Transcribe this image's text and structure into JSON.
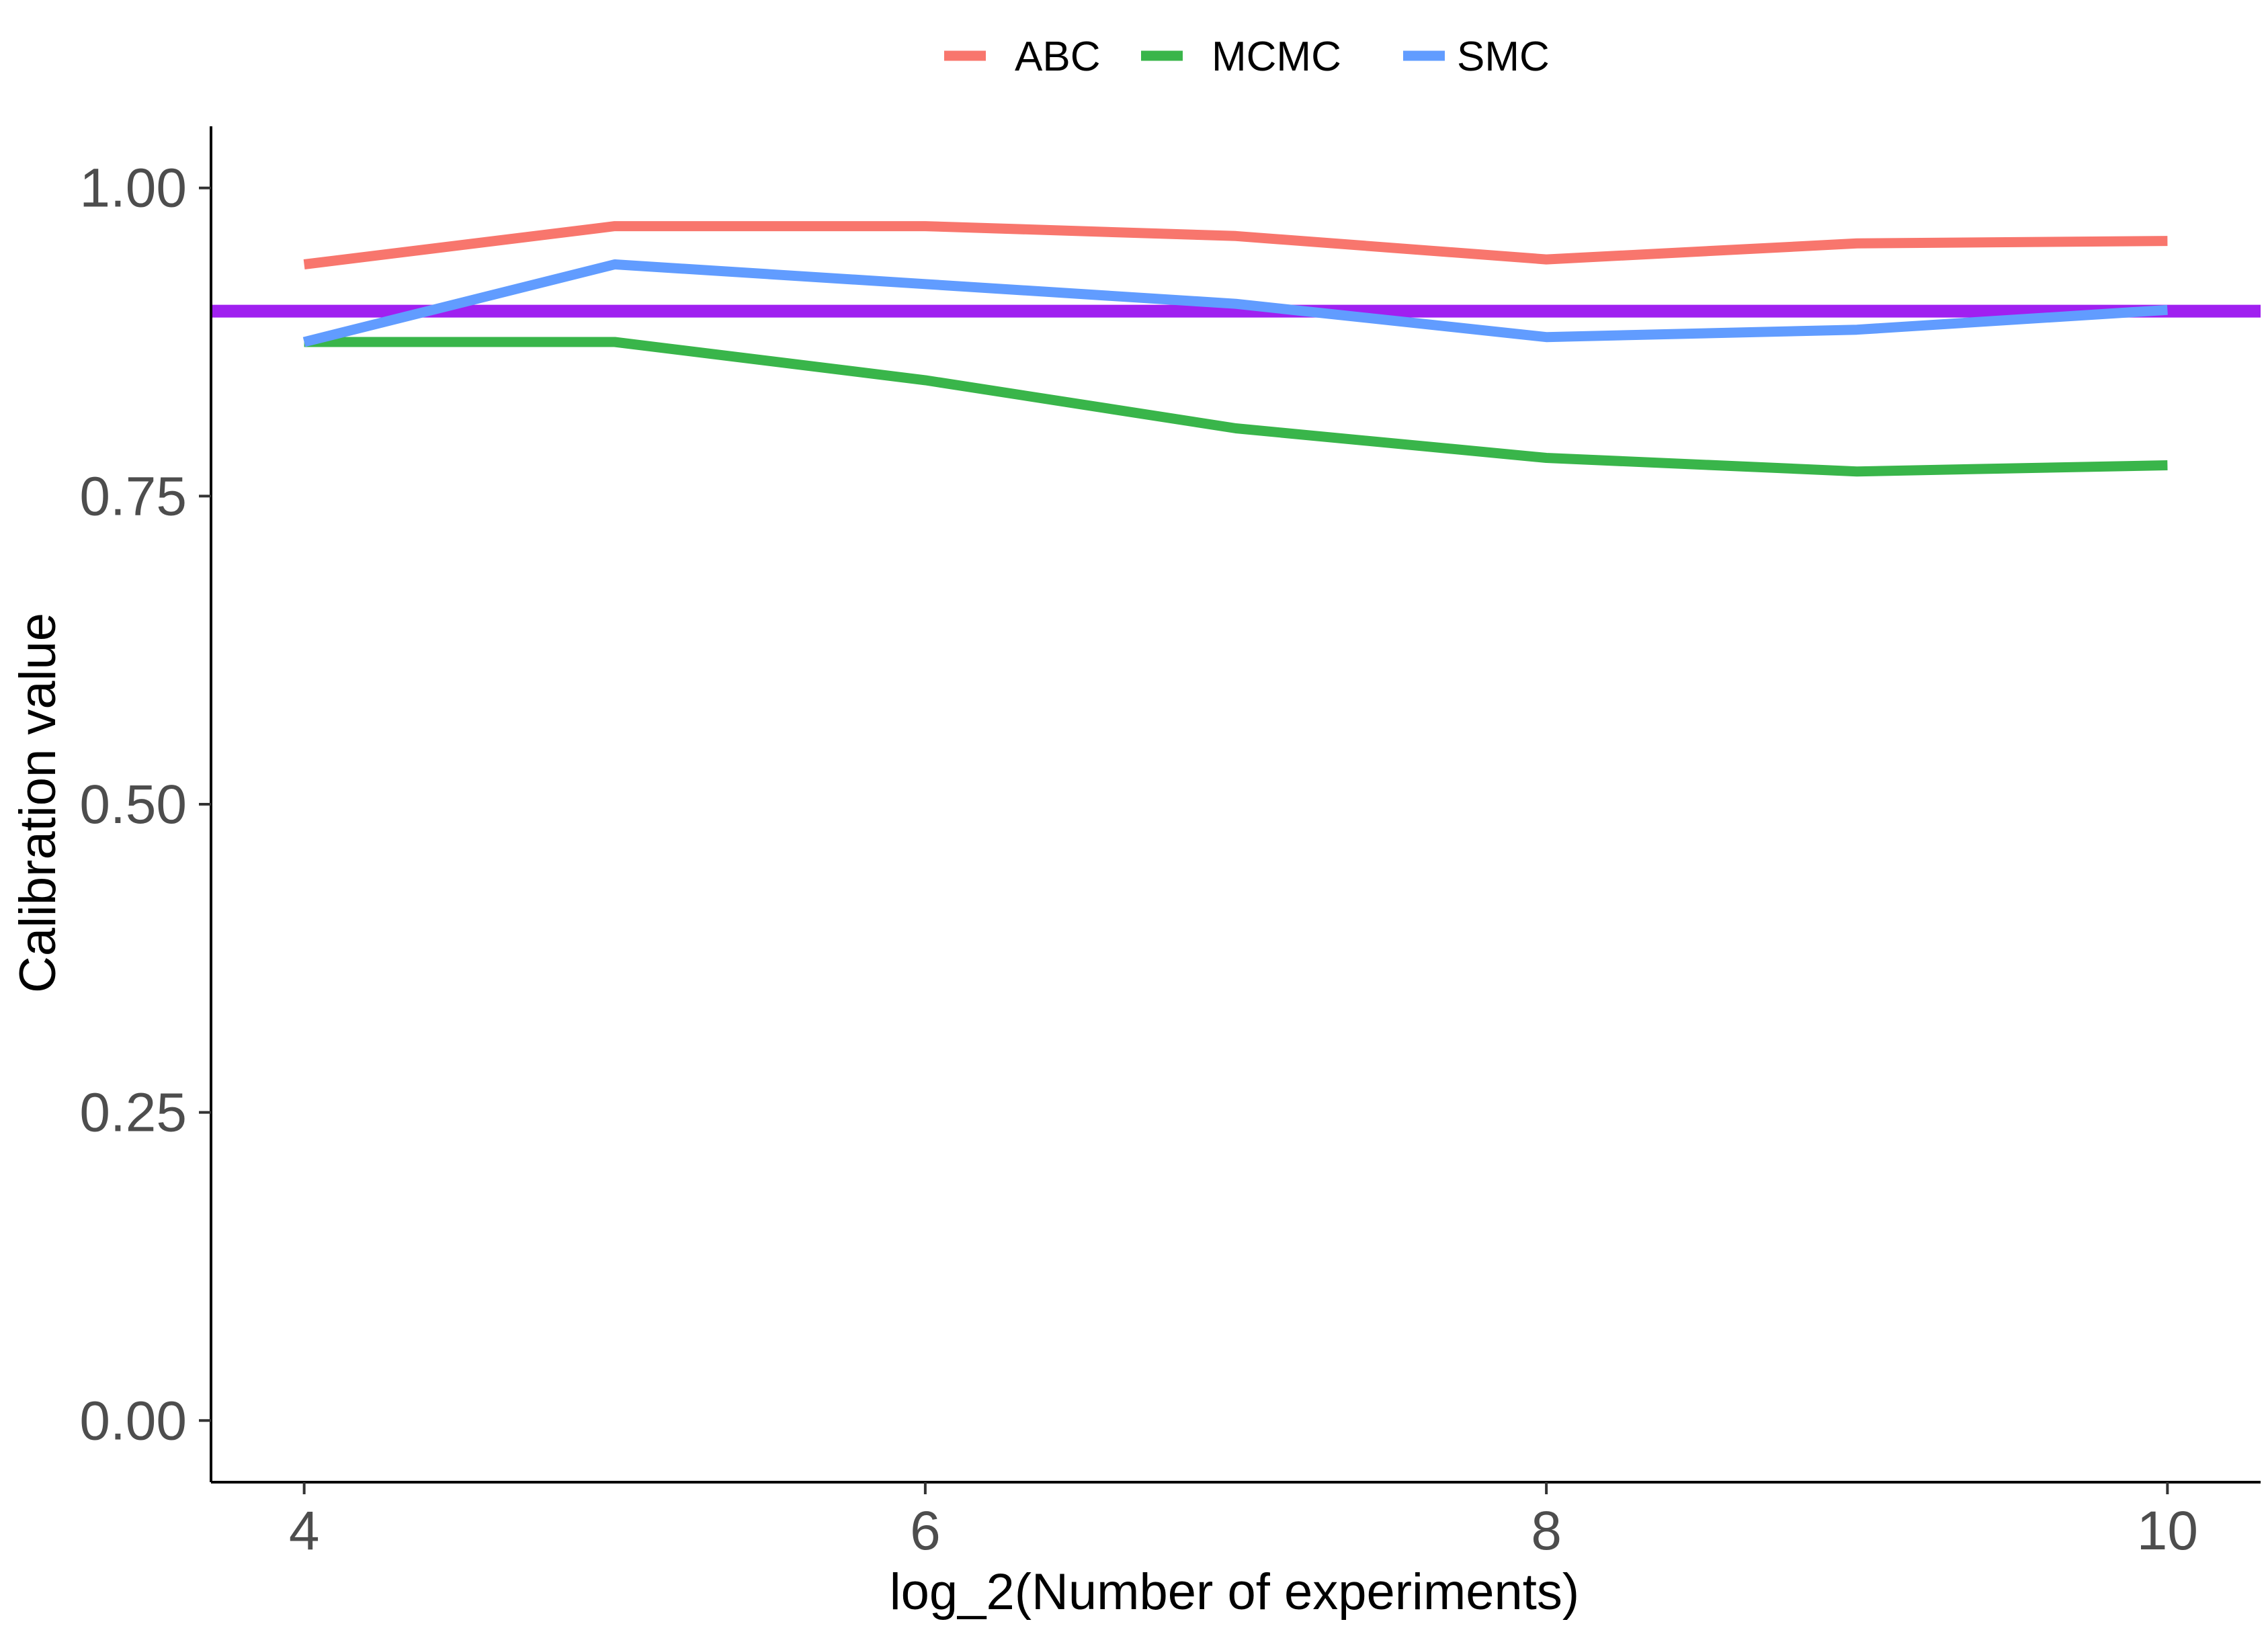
{
  "chart_data": {
    "type": "line",
    "title": "",
    "xlabel": "log_2(Number of experiments)",
    "ylabel": "Calibration value",
    "x": [
      4,
      5,
      6,
      7,
      8,
      9,
      10
    ],
    "xlim": [
      3.7,
      10.3
    ],
    "ylim": [
      -0.05,
      1.05
    ],
    "xticks": [
      4,
      6,
      8,
      10
    ],
    "xtick_labels": [
      "4",
      "6",
      "8",
      "10"
    ],
    "yticks": [
      0,
      0.25,
      0.5,
      0.75,
      1.0
    ],
    "ytick_labels": [
      "0.00",
      "0.25",
      "0.50",
      "0.75",
      "1.00"
    ],
    "grid": false,
    "legend_position": "top",
    "series": [
      {
        "name": "ABC",
        "color": "#F8766D",
        "values": [
          0.938,
          0.969,
          0.969,
          0.961,
          0.942,
          0.955,
          0.957
        ]
      },
      {
        "name": "MCMC",
        "color": "#39B54A",
        "values": [
          0.875,
          0.875,
          0.844,
          0.805,
          0.781,
          0.77,
          0.775
        ]
      },
      {
        "name": "SMC",
        "color": "#619CFF",
        "values": [
          0.875,
          0.938,
          0.922,
          0.906,
          0.879,
          0.885,
          0.901
        ]
      }
    ],
    "reference_line": {
      "y": 0.9,
      "color": "#A020F0"
    }
  }
}
